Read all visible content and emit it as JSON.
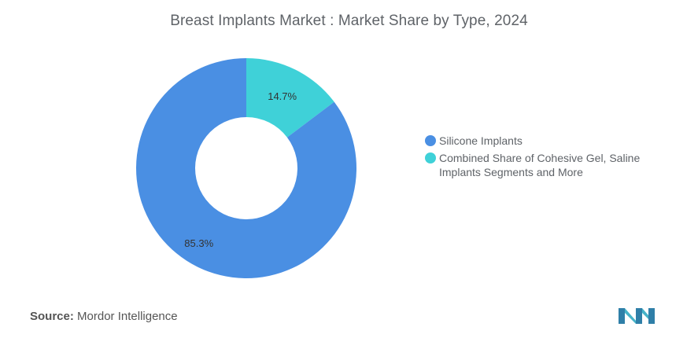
{
  "chart_data": {
    "type": "pie",
    "title": "Breast Implants Market : Market Share by Type, 2024",
    "donut": true,
    "slices": [
      {
        "label": "Silicone Implants",
        "value": 85.3,
        "display": "85.3%",
        "color": "#4a8fe3"
      },
      {
        "label": "Combined Share of Cohesive Gel, Saline Implants Segments and More",
        "value": 14.7,
        "display": "14.7%",
        "color": "#3fd1d8"
      }
    ],
    "legend_position": "right"
  },
  "source": {
    "label": "Source:",
    "text": "Mordor Intelligence"
  },
  "logo": {
    "icon": "mordor-intelligence-logo-icon",
    "color": "#3b8fb0"
  }
}
